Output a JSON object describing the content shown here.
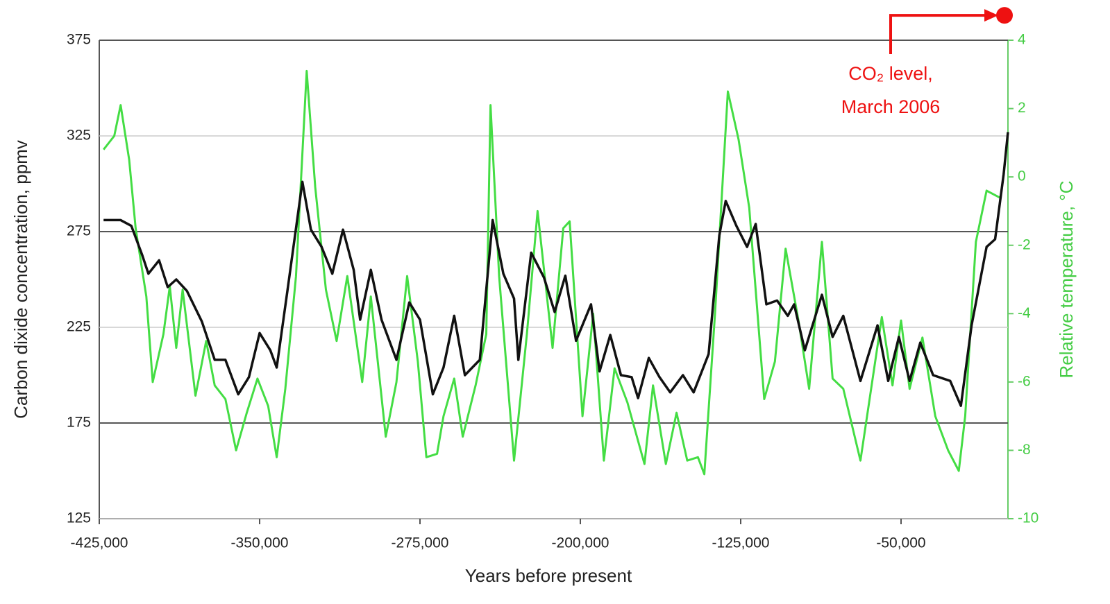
{
  "chart_data": {
    "type": "line",
    "xlabel": "Years before present",
    "ylabel": "Carbon dixide concentration, ppmv",
    "y2label": "Relative temperature, °C",
    "xlim": [
      -425000,
      0
    ],
    "xticks": [
      {
        "value": -425000,
        "label": "-425,000"
      },
      {
        "value": -350000,
        "label": "-350,000"
      },
      {
        "value": -275000,
        "label": "-275,000"
      },
      {
        "value": -200000,
        "label": "-200,000"
      },
      {
        "value": -125000,
        "label": "-125,000"
      },
      {
        "value": -50000,
        "label": "-50,000"
      }
    ],
    "ylim": [
      125,
      375
    ],
    "yticks": [
      125,
      175,
      225,
      275,
      325,
      375
    ],
    "y2lim": [
      -10,
      4
    ],
    "y2ticks": [
      -10,
      -8,
      -6,
      -4,
      -2,
      0,
      2,
      4
    ],
    "grid": true,
    "series": [
      {
        "color": "#44dd44",
        "axis": "y2",
        "x": [
          -423000,
          -418000,
          -415000,
          -411000,
          -408000,
          -403000,
          -400000,
          -395000,
          -392000,
          -389000,
          -386000,
          -380000,
          -375000,
          -371000,
          -366000,
          -361000,
          -356000,
          -351000,
          -346000,
          -342000,
          -338000,
          -333000,
          -328000,
          -324000,
          -319000,
          -314000,
          -309000,
          -302000,
          -298000,
          -291000,
          -286000,
          -281000,
          -276000,
          -272000,
          -267000,
          -264000,
          -259000,
          -255000,
          -249000,
          -244000,
          -242000,
          -238000,
          -231000,
          -225000,
          -220000,
          -213000,
          -208000,
          -205000,
          -199000,
          -194000,
          -189000,
          -184000,
          -178000,
          -170000,
          -166000,
          -160000,
          -155000,
          -150000,
          -145000,
          -142000,
          -137000,
          -131000,
          -126000,
          -121000,
          -114000,
          -109000,
          -104000,
          -98000,
          -93000,
          -87000,
          -82000,
          -77000,
          -69000,
          -64000,
          -59000,
          -54000,
          -50000,
          -46000,
          -40000,
          -34000,
          -28000,
          -23000,
          -20000,
          -15000,
          -10000,
          -4000
        ],
        "values": [
          0.8,
          1.2,
          2.1,
          0.5,
          -1.5,
          -3.5,
          -6.0,
          -4.6,
          -3.2,
          -5.0,
          -3.3,
          -6.4,
          -4.8,
          -6.1,
          -6.5,
          -8.0,
          -6.9,
          -5.9,
          -6.7,
          -8.2,
          -6.2,
          -2.9,
          3.1,
          -0.3,
          -3.3,
          -4.8,
          -2.9,
          -6.0,
          -3.5,
          -7.6,
          -6.0,
          -2.9,
          -5.4,
          -8.2,
          -8.1,
          -7.0,
          -5.9,
          -7.6,
          -6.1,
          -4.6,
          2.1,
          -2.9,
          -8.3,
          -4.6,
          -1.0,
          -5.0,
          -1.5,
          -1.3,
          -7.0,
          -4.0,
          -8.3,
          -5.6,
          -6.6,
          -8.4,
          -6.1,
          -8.4,
          -6.9,
          -8.3,
          -8.2,
          -8.7,
          -4.0,
          2.5,
          1.1,
          -0.9,
          -6.5,
          -5.4,
          -2.1,
          -4.2,
          -6.2,
          -1.9,
          -5.9,
          -6.2,
          -8.3,
          -6.2,
          -4.1,
          -6.1,
          -4.2,
          -6.2,
          -4.7,
          -7.0,
          -8.0,
          -8.6,
          -7.0,
          -1.9,
          -0.4,
          -0.6
        ]
      },
      {
        "color": "#111111",
        "x": [
          -423000,
          -415000,
          -410000,
          -405000,
          -402000,
          -397000,
          -393000,
          -389000,
          -384000,
          -377000,
          -371000,
          -366000,
          -360000,
          -355000,
          -350000,
          -345000,
          -342000,
          -337000,
          -330000,
          -326000,
          -321000,
          -316000,
          -311000,
          -306000,
          -303000,
          -298000,
          -293000,
          -286000,
          -280000,
          -275000,
          -269000,
          -264000,
          -259000,
          -254000,
          -247000,
          -241000,
          -236000,
          -231000,
          -229000,
          -223000,
          -217000,
          -212000,
          -207000,
          -202000,
          -195000,
          -191000,
          -186000,
          -181000,
          -176000,
          -173000,
          -168000,
          -163000,
          -158000,
          -152000,
          -147000,
          -140000,
          -135000,
          -132000,
          -127000,
          -122000,
          -118000,
          -113000,
          -108000,
          -103000,
          -100000,
          -95000,
          -87000,
          -82000,
          -77000,
          -69000,
          -61000,
          -56000,
          -51000,
          -46000,
          -41000,
          -35000,
          -27000,
          -22000,
          -17000,
          -10000,
          -6000,
          -2000,
          0
        ],
        "values": [
          281,
          281,
          278,
          263,
          253,
          260,
          246,
          250,
          244,
          228,
          208,
          208,
          190,
          199,
          222,
          213,
          204,
          244,
          301,
          276,
          267,
          253,
          276,
          255,
          229,
          255,
          229,
          208,
          238,
          229,
          190,
          204,
          231,
          200,
          208,
          281,
          253,
          240,
          208,
          264,
          251,
          233,
          252,
          218,
          237,
          202,
          221,
          200,
          199,
          188,
          209,
          199,
          191,
          200,
          191,
          211,
          273,
          291,
          278,
          267,
          279,
          237,
          239,
          231,
          237,
          213,
          242,
          220,
          231,
          197,
          226,
          197,
          220,
          197,
          217,
          200,
          197,
          184,
          226,
          267,
          271,
          305,
          327
        ]
      }
    ],
    "annotation": {
      "text": [
        "CO₂ level,",
        "March 2006"
      ],
      "x": 0,
      "value": 388,
      "color": "#ee1111"
    }
  }
}
